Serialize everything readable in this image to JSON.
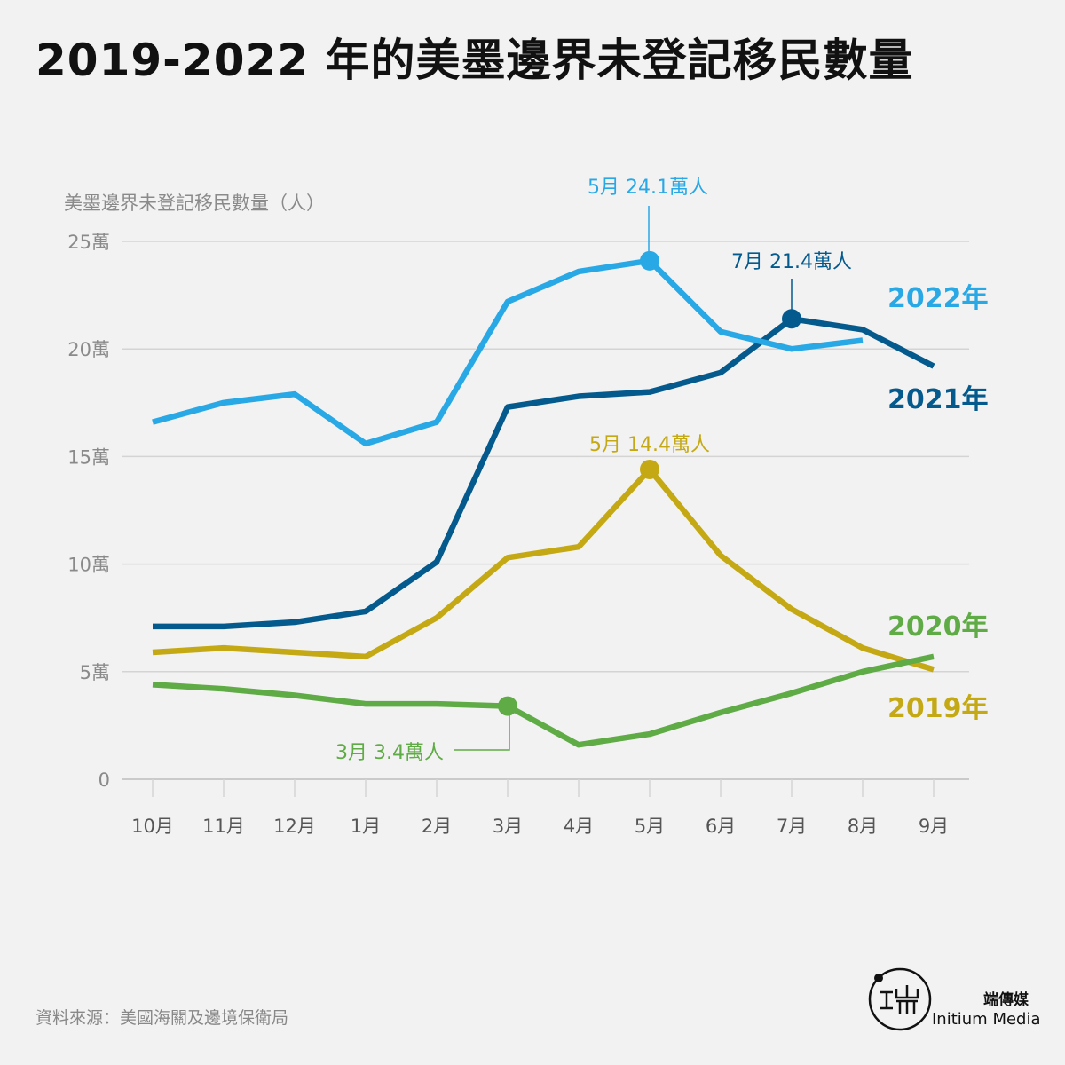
{
  "page": {
    "title": "2019-2022 年的美墨邊界未登記移民數量",
    "source": "資料來源：美國海關及邊境保衛局",
    "brand_zh": "端傳媒",
    "brand_en": "Initium Media"
  },
  "colors": {
    "2019": "#c4a915",
    "2020": "#5fab45",
    "2021": "#045a8d",
    "2022": "#29a8e6",
    "grid": "#d4d4d4",
    "axis_text": "#8a8a8a"
  },
  "chart_data": {
    "type": "line",
    "ylabel": "美墨邊界未登記移民數量（人）",
    "categories": [
      "10月",
      "11月",
      "12月",
      "1月",
      "2月",
      "3月",
      "4月",
      "5月",
      "6月",
      "7月",
      "8月",
      "9月"
    ],
    "ylim": [
      0,
      250000
    ],
    "yticks": [
      0,
      50000,
      100000,
      150000,
      200000,
      250000
    ],
    "ytick_labels": [
      "0",
      "5萬",
      "10萬",
      "15萬",
      "20萬",
      "25萬"
    ],
    "grid": true,
    "series": [
      {
        "name": "2022年",
        "key": "2022",
        "values": [
          166000,
          175000,
          179000,
          156000,
          166000,
          222000,
          236000,
          241000,
          208000,
          200000,
          204000,
          null
        ]
      },
      {
        "name": "2021年",
        "key": "2021",
        "values": [
          71000,
          71000,
          73000,
          78000,
          101000,
          173000,
          178000,
          180000,
          189000,
          214000,
          209000,
          192000
        ]
      },
      {
        "name": "2020年",
        "key": "2020",
        "values": [
          44000,
          42000,
          39000,
          35000,
          35000,
          34000,
          16000,
          21000,
          31000,
          40000,
          50000,
          57000
        ]
      },
      {
        "name": "2019年",
        "key": "2019",
        "values": [
          59000,
          61000,
          59000,
          57000,
          75000,
          103000,
          108000,
          144000,
          104000,
          79000,
          61000,
          51000
        ]
      }
    ],
    "annotations": [
      {
        "series": "2022",
        "index": 7,
        "month": "5月",
        "value_text": "24.1萬人"
      },
      {
        "series": "2021",
        "index": 9,
        "month": "7月",
        "value_text": "21.4萬人"
      },
      {
        "series": "2019",
        "index": 7,
        "month": "5月",
        "value_text": "14.4萬人"
      },
      {
        "series": "2020",
        "index": 5,
        "month": "3月",
        "value_text": "3.4萬人"
      }
    ]
  }
}
